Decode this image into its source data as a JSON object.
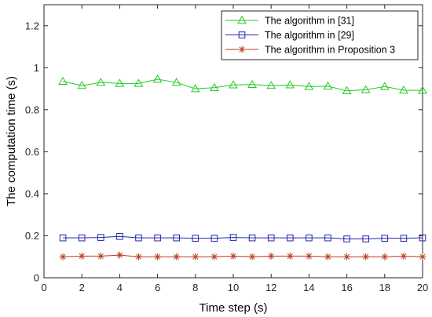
{
  "chart_data": {
    "type": "line",
    "xlabel": "Time step (s)",
    "ylabel": "The computation time (s)",
    "xlim": [
      0,
      20
    ],
    "ylim": [
      0,
      1.3
    ],
    "xticks": [
      0,
      2,
      4,
      6,
      8,
      10,
      12,
      14,
      16,
      18,
      20
    ],
    "yticks": [
      0,
      0.2,
      0.4,
      0.6,
      0.8,
      1,
      1.2
    ],
    "xtick_labels": [
      "0",
      "2",
      "4",
      "6",
      "8",
      "10",
      "12",
      "14",
      "16",
      "18",
      "20"
    ],
    "ytick_labels": [
      "0",
      "0.2",
      "0.4",
      "0.6",
      "0.8",
      "1",
      "1.2"
    ],
    "grid": false,
    "legend_position": "top-right",
    "x": [
      1,
      2,
      3,
      4,
      5,
      6,
      7,
      8,
      9,
      10,
      11,
      12,
      13,
      14,
      15,
      16,
      17,
      18,
      19,
      20
    ],
    "series": [
      {
        "name": "The algorithm in [31]",
        "color": "#22cc22",
        "marker": "triangle",
        "values": [
          0.935,
          0.915,
          0.93,
          0.925,
          0.925,
          0.945,
          0.93,
          0.9,
          0.905,
          0.918,
          0.92,
          0.915,
          0.918,
          0.91,
          0.912,
          0.89,
          0.895,
          0.91,
          0.893,
          0.892
        ]
      },
      {
        "name": "The algorithm in [29]",
        "color": "#2323b4",
        "marker": "square",
        "values": [
          0.19,
          0.19,
          0.192,
          0.197,
          0.19,
          0.19,
          0.19,
          0.188,
          0.188,
          0.192,
          0.19,
          0.19,
          0.19,
          0.19,
          0.19,
          0.185,
          0.185,
          0.188,
          0.188,
          0.19
        ]
      },
      {
        "name": "The algorithm in Proposition 3",
        "color": "#b93a20",
        "marker": "asterisk",
        "values": [
          0.1,
          0.103,
          0.103,
          0.108,
          0.1,
          0.1,
          0.1,
          0.1,
          0.1,
          0.103,
          0.1,
          0.103,
          0.103,
          0.103,
          0.1,
          0.1,
          0.1,
          0.1,
          0.103,
          0.1
        ]
      }
    ]
  }
}
